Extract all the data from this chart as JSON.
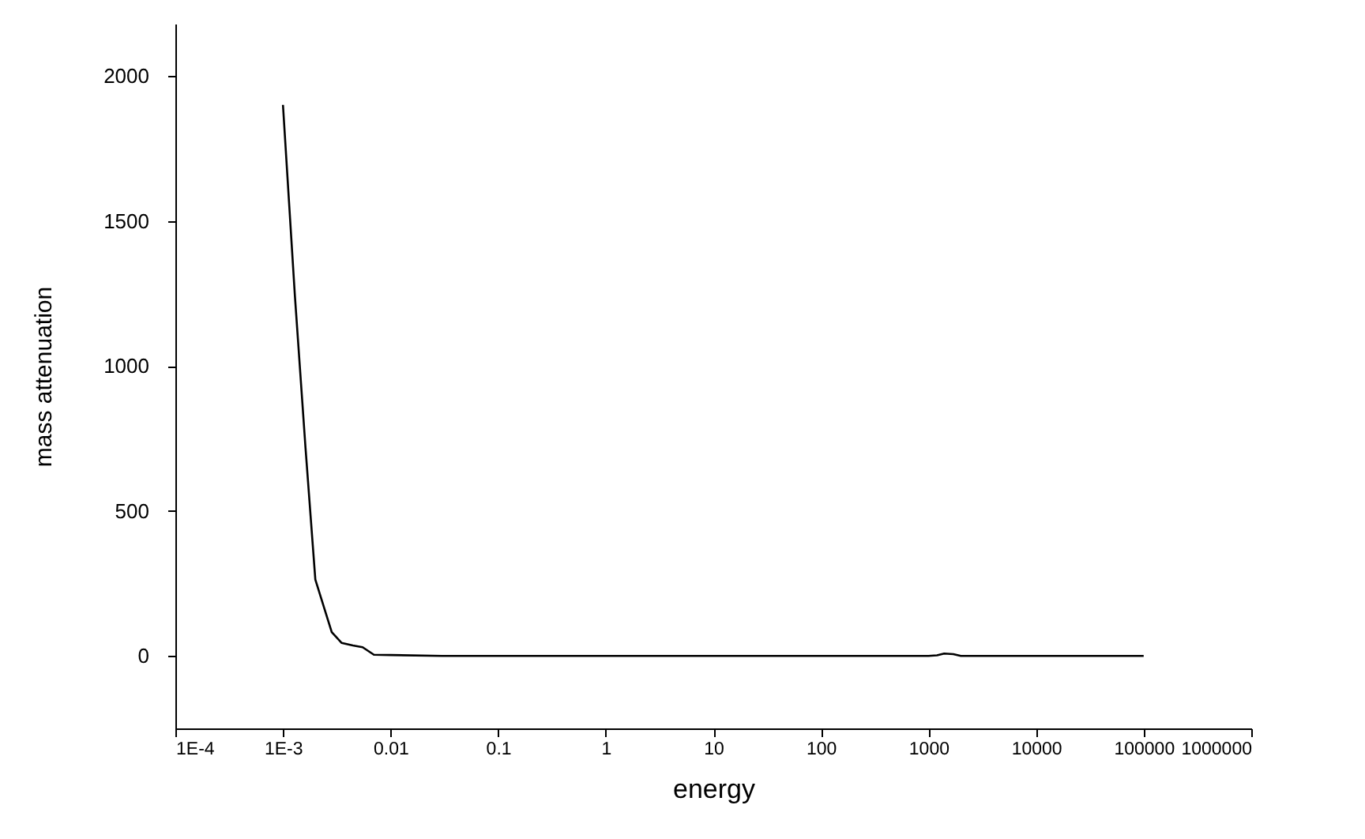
{
  "chart_data": {
    "type": "line",
    "xlabel": "energy",
    "ylabel": "mass attenuation",
    "log": "x",
    "x": [
      0.001,
      0.00129,
      0.00162,
      0.002,
      0.00284,
      0.0035,
      0.00446,
      0.0055,
      0.007,
      0.01,
      0.03,
      0.1,
      1,
      10,
      100,
      1000,
      1200,
      1400,
      1700,
      2000,
      10000,
      100000
    ],
    "series": [
      {
        "color": "#000000",
        "values": [
          1900,
          1244,
          718,
          263,
          82,
          45,
          36,
          30,
          4,
          3,
          0,
          0,
          0,
          0,
          0,
          0,
          2,
          8,
          6,
          0,
          0,
          0
        ]
      }
    ],
    "xlim": [
      0.0001,
      1000000
    ],
    "ylim": [
      -250,
      2180
    ],
    "xticks": [
      {
        "value": 0.0001,
        "label": "1E-4"
      },
      {
        "value": 0.001,
        "label": "1E-3"
      },
      0.01,
      0.1,
      1,
      10,
      100,
      1000,
      10000,
      100000,
      1000000
    ],
    "yticks": [
      0,
      500,
      1000,
      1500,
      2000
    ]
  }
}
